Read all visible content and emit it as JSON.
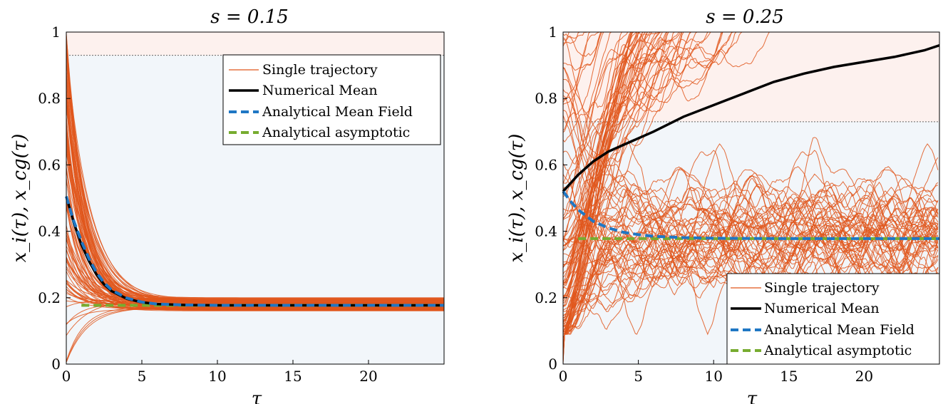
{
  "chart_data": [
    {
      "type": "line",
      "title": "s = 0.15",
      "xlabel": "τ",
      "ylabel": "x_i(τ), x_cg(τ)",
      "xlim": [
        0,
        25
      ],
      "ylim": [
        0,
        1
      ],
      "xticks": [
        "0",
        "5",
        "10",
        "15",
        "20"
      ],
      "yticks": [
        "0",
        "0.2",
        "0.4",
        "0.6",
        "0.8",
        "1"
      ],
      "threshold": 0.93,
      "asymptote": 0.177,
      "initial_mean": 0.505,
      "legend_position": "top-right",
      "legend": [
        "Single trajectory",
        "Numerical Mean",
        "Analytical Mean Field",
        "Analytical asymptotic"
      ],
      "series": [
        {
          "name": "Numerical Mean",
          "x": [
            0,
            0.5,
            1,
            1.5,
            2,
            2.5,
            3,
            4,
            5,
            6,
            8,
            10,
            15,
            20,
            25
          ],
          "y": [
            0.505,
            0.425,
            0.36,
            0.31,
            0.27,
            0.24,
            0.22,
            0.197,
            0.186,
            0.181,
            0.178,
            0.177,
            0.177,
            0.177,
            0.177
          ]
        },
        {
          "name": "Analytical Mean Field",
          "x": [
            0,
            0.5,
            1,
            1.5,
            2,
            2.5,
            3,
            4,
            5,
            6,
            8,
            10,
            15,
            20,
            25
          ],
          "y": [
            0.505,
            0.43,
            0.37,
            0.318,
            0.276,
            0.245,
            0.223,
            0.199,
            0.187,
            0.181,
            0.178,
            0.177,
            0.177,
            0.177,
            0.177
          ]
        },
        {
          "name": "Analytical asymptotic",
          "x": [
            1,
            25
          ],
          "y": [
            0.177,
            0.177
          ]
        }
      ],
      "trajectories": {
        "count": 90,
        "start_range": [
          0,
          1
        ],
        "decay_rate": 0.75,
        "final_band": [
          0.16,
          0.2
        ]
      }
    },
    {
      "type": "line",
      "title": "s = 0.25",
      "xlabel": "τ",
      "ylabel": "x_i(τ), x_cg(τ)",
      "xlim": [
        0,
        25
      ],
      "ylim": [
        0,
        1
      ],
      "xticks": [
        "0",
        "5",
        "10",
        "15",
        "20"
      ],
      "yticks": [
        "0",
        "0.2",
        "0.4",
        "0.6",
        "0.8",
        "1"
      ],
      "threshold": 0.73,
      "asymptote": 0.378,
      "initial_mean": 0.52,
      "legend_position": "bottom-right",
      "legend": [
        "Single trajectory",
        "Numerical Mean",
        "Analytical Mean Field",
        "Analytical asymptotic"
      ],
      "series": [
        {
          "name": "Numerical Mean",
          "x": [
            0,
            1,
            2,
            3,
            4,
            6,
            8,
            10,
            12,
            14,
            16,
            18,
            20,
            22,
            24,
            25
          ],
          "y": [
            0.52,
            0.57,
            0.61,
            0.64,
            0.66,
            0.7,
            0.745,
            0.78,
            0.815,
            0.85,
            0.875,
            0.895,
            0.91,
            0.925,
            0.945,
            0.96
          ]
        },
        {
          "name": "Analytical Mean Field",
          "x": [
            0,
            0.5,
            1,
            2,
            3,
            4,
            5,
            6,
            8,
            10,
            15,
            20,
            25
          ],
          "y": [
            0.52,
            0.49,
            0.465,
            0.43,
            0.41,
            0.397,
            0.39,
            0.385,
            0.381,
            0.379,
            0.378,
            0.378,
            0.378
          ]
        },
        {
          "name": "Analytical asymptotic",
          "x": [
            1,
            25
          ],
          "y": [
            0.378,
            0.378
          ]
        }
      ],
      "trajectories": {
        "count": 110,
        "start_range": [
          0,
          1
        ],
        "noise": 0.08,
        "lower_bound": 0.09
      }
    }
  ]
}
